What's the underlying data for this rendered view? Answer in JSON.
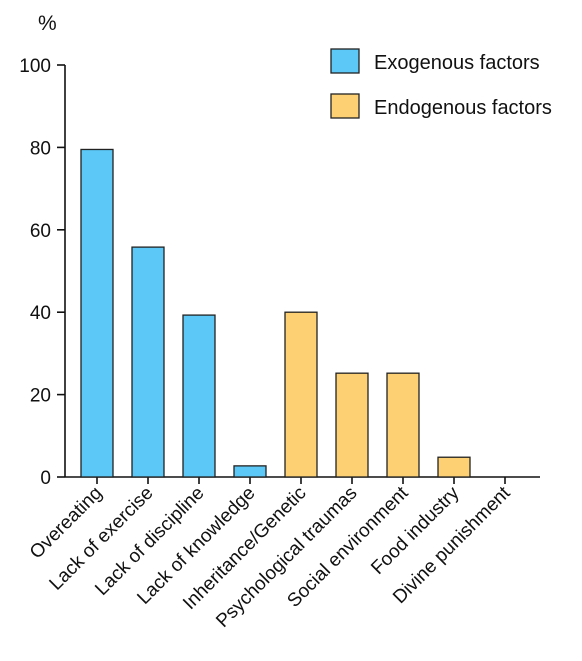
{
  "chart_data": {
    "type": "bar",
    "ylabel": "%",
    "ylim": [
      0,
      100
    ],
    "yticks": [
      0,
      20,
      40,
      60,
      80,
      100
    ],
    "categories": [
      "Overeating",
      "Lack of exercise",
      "Lack of discipline",
      "Lack of knowledge",
      "Inheritance/Genetic",
      "Psychological traumas",
      "Social environment",
      "Food industry",
      "Divine punishment"
    ],
    "values": [
      79.5,
      55.8,
      39.3,
      2.7,
      40.0,
      25.2,
      25.2,
      4.8,
      0
    ],
    "groups": [
      "exo",
      "exo",
      "exo",
      "exo",
      "endo",
      "endo",
      "endo",
      "endo",
      "endo"
    ],
    "series": [
      {
        "key": "exo",
        "name": "Exogenous factors",
        "color": "#5bc8f7"
      },
      {
        "key": "endo",
        "name": "Endogenous factors",
        "color": "#fcd073"
      }
    ],
    "legend_position": "top-right",
    "grid": false
  }
}
